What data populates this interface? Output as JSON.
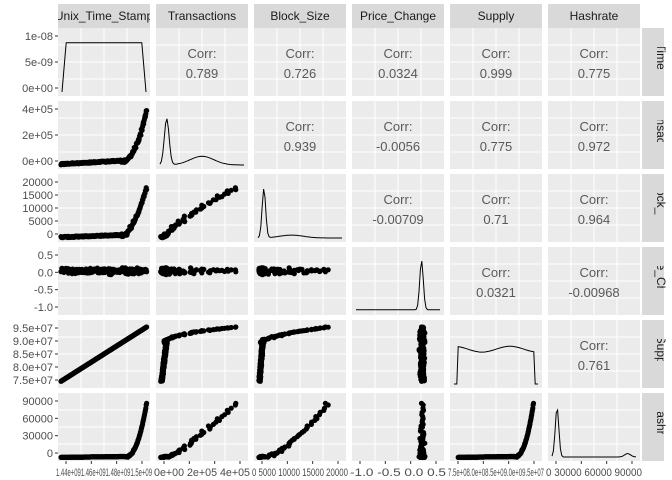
{
  "chart_data": {
    "type": "scatter",
    "variables": [
      "Unix_Time_Stamp",
      "Transactions",
      "Block_Size",
      "Price_Change",
      "Supply",
      "Hashrate"
    ],
    "row_labels": [
      "Unix_Time_Stamp",
      "Transactions",
      "Block_Size",
      "Price_Change",
      "Supply",
      "Hashrate"
    ],
    "correlation_label": "Corr:",
    "correlations": [
      {
        "row": 0,
        "col": 1,
        "value": "0.789"
      },
      {
        "row": 0,
        "col": 2,
        "value": "0.726"
      },
      {
        "row": 0,
        "col": 3,
        "value": "0.0324"
      },
      {
        "row": 0,
        "col": 4,
        "value": "0.999"
      },
      {
        "row": 0,
        "col": 5,
        "value": "0.775"
      },
      {
        "row": 1,
        "col": 2,
        "value": "0.939"
      },
      {
        "row": 1,
        "col": 3,
        "value": "-0.0056"
      },
      {
        "row": 1,
        "col": 4,
        "value": "0.775"
      },
      {
        "row": 1,
        "col": 5,
        "value": "0.972"
      },
      {
        "row": 2,
        "col": 3,
        "value": "-0.00709"
      },
      {
        "row": 2,
        "col": 4,
        "value": "0.71"
      },
      {
        "row": 2,
        "col": 5,
        "value": "0.964"
      },
      {
        "row": 3,
        "col": 4,
        "value": "0.0321"
      },
      {
        "row": 3,
        "col": 5,
        "value": "-0.00968"
      },
      {
        "row": 4,
        "col": 5,
        "value": "0.761"
      }
    ],
    "y_axes": [
      {
        "row": 0,
        "ticks": [
          "1e-08",
          "5e-09",
          "0e+00"
        ]
      },
      {
        "row": 1,
        "ticks": [
          "4e+05",
          "2e+05",
          "0e+00"
        ]
      },
      {
        "row": 2,
        "ticks": [
          "20000",
          "15000",
          "10000",
          "5000",
          "0"
        ]
      },
      {
        "row": 3,
        "ticks": [
          "0.5",
          "0.0",
          "-0.5",
          "-1.0"
        ]
      },
      {
        "row": 4,
        "ticks": [
          "9.5e+07",
          "9.0e+07",
          "8.5e+07",
          "8.0e+07",
          "7.5e+07"
        ]
      },
      {
        "row": 5,
        "ticks": [
          "90000",
          "60000",
          "30000",
          "0"
        ]
      }
    ],
    "x_axes": [
      {
        "col": 0,
        "label_text": "1.44e+091.46e+091.48e+091.5e+09"
      },
      {
        "col": 1,
        "label_text": "0e+00 2e+05 4e+05"
      },
      {
        "col": 2,
        "label_text": "0 5000 10000 15000 20000"
      },
      {
        "col": 3,
        "label_text": "-1.0  -0.5  0.0  0.5"
      },
      {
        "col": 4,
        "label_text": "7.5e+08.0e+08.5e+09.0e+09.5e+07"
      },
      {
        "col": 5,
        "label_text": "0 30000 60000 90000"
      }
    ],
    "grid": true,
    "point_color": "#000000",
    "panel_background": "#ebebeb",
    "strip_background": "#d9d9d9"
  }
}
